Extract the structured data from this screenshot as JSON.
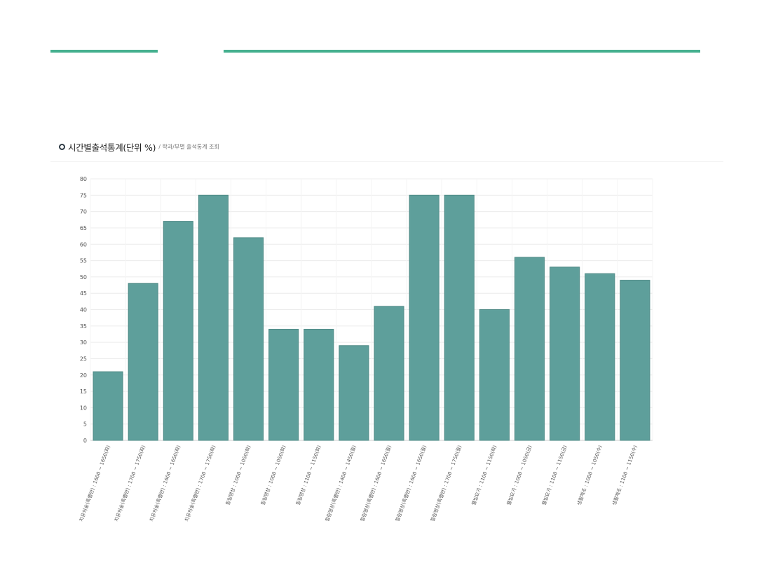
{
  "colors": {
    "accent_rule": "#45b08f",
    "bar_fill": "#5e9f9b",
    "bar_stroke": "#4f8a86",
    "grid": "#ececec",
    "axis_text": "#555555"
  },
  "header": {
    "title": "시간별출석통계(단위 %)",
    "subtitle": "/ 학과/부별 출석통계 조회"
  },
  "chart_data": {
    "type": "bar",
    "title": "",
    "xlabel": "",
    "ylabel": "",
    "ylim": [
      0,
      80
    ],
    "yticks": [
      0,
      5,
      10,
      15,
      20,
      25,
      30,
      35,
      40,
      45,
      50,
      55,
      60,
      65,
      70,
      75,
      80
    ],
    "grid": true,
    "legend": "none",
    "categories": [
      "치유의숲(특별반) : 1600 ~ 1650(화)",
      "치유의숲(특별반) : 1700 ~ 1750(화)",
      "치유의숲(특별반) : 1600 ~ 1650(화)",
      "치유의숲(특별반) : 1700 ~ 1750(화)",
      "힐링명상 : 1000 ~ 1050(화)",
      "힐링명상 : 1000 ~ 1050(화)",
      "힐링명상 : 1100 ~ 1150(화)",
      "힐링명상(특별반) : 1400 ~ 1450(월)",
      "힐링명상(특별반) : 1600 ~ 1650(월)",
      "힐링명상(특별반) : 1600 ~ 1650(월)",
      "힐링명상(특별반) : 1700 ~ 1750(월)",
      "웰빙요가 : 1100 ~ 1150(화)",
      "웰빙요가 : 1000 ~ 1050(금)",
      "웰빙요가 : 1100 ~ 1150(금)",
      "생활체조 : 1000 ~ 1050(수)",
      "생활체조 : 1100 ~ 1150(수)"
    ],
    "values": [
      21,
      48,
      67,
      75,
      62,
      34,
      34,
      29,
      41,
      75,
      75,
      40,
      56,
      53,
      51,
      49
    ]
  }
}
